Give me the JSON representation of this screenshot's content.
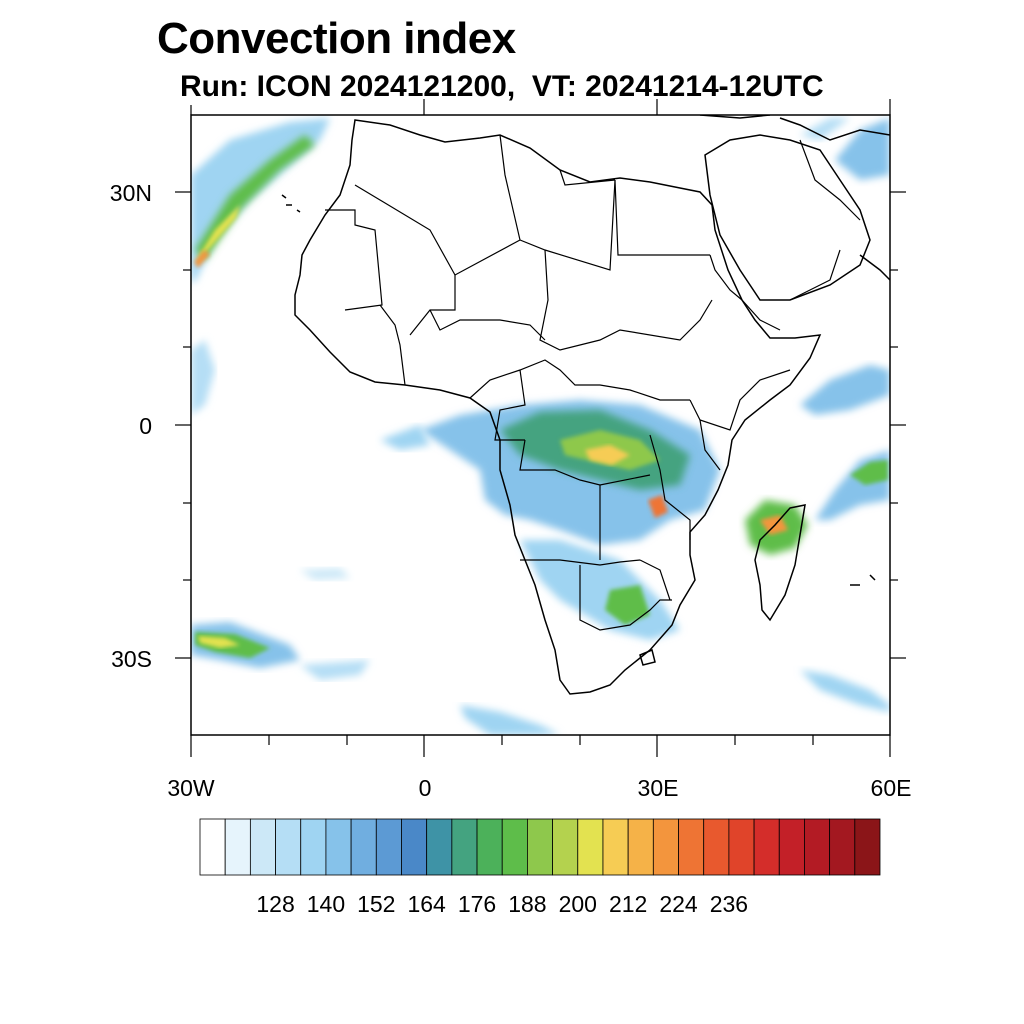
{
  "title": "Convection index",
  "subtitle": "Run: ICON 2024121200,  VT: 20241214-12UTC",
  "map": {
    "region": "Africa",
    "lon_range": [
      -30,
      60
    ],
    "lat_range": [
      -40,
      40
    ],
    "lat_ticks": [
      {
        "value": 30,
        "label": "30N"
      },
      {
        "value": 0,
        "label": "0"
      },
      {
        "value": -30,
        "label": "30S"
      }
    ],
    "lon_ticks": [
      {
        "value": -30,
        "label": "30W"
      },
      {
        "value": 0,
        "label": "0"
      },
      {
        "value": 30,
        "label": "30E"
      },
      {
        "value": 60,
        "label": "60E"
      }
    ]
  },
  "colorbar": {
    "labels": [
      "128",
      "140",
      "152",
      "164",
      "176",
      "188",
      "200",
      "212",
      "224",
      "236"
    ],
    "colors": [
      "#ffffff",
      "#e6f4fc",
      "#cce8f7",
      "#b5def5",
      "#9fd4f2",
      "#86c2ea",
      "#70aee0",
      "#5c9ad4",
      "#4a88c8",
      "#3e93a6",
      "#44a380",
      "#4cb15a",
      "#5ebd4a",
      "#8ec84c",
      "#b4d24e",
      "#e3e250",
      "#f6cc54",
      "#f5b248",
      "#f3953d",
      "#ee7434",
      "#e8592e",
      "#e0442a",
      "#d42d2a",
      "#c32028",
      "#b31b24",
      "#a31820",
      "#8b1518"
    ]
  }
}
